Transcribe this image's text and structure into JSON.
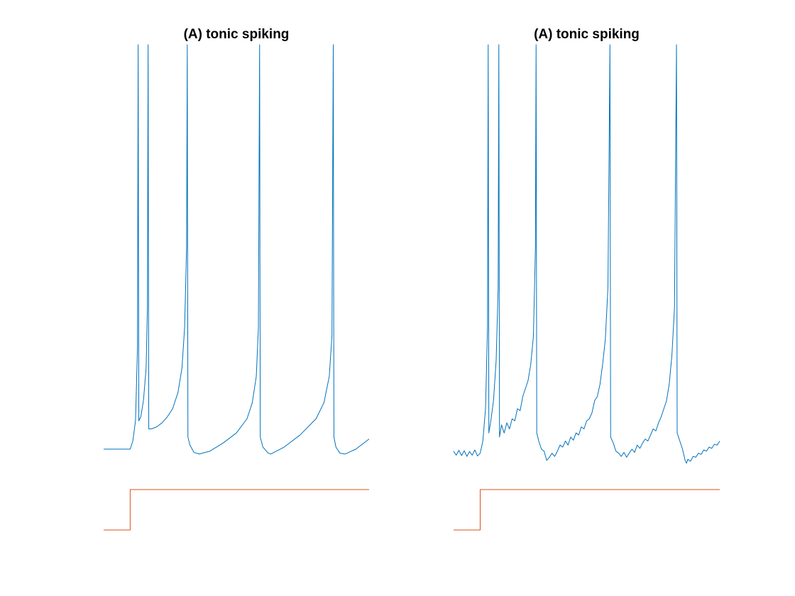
{
  "chart_data": [
    {
      "type": "line",
      "title": "(A) tonic spiking",
      "xlim": [
        0,
        100
      ],
      "ylim": [
        -90,
        30
      ],
      "series": [
        {
          "color": "#0072BD",
          "x": [
            0,
            10,
            11,
            12,
            12.75,
            13,
            13.25,
            14,
            15,
            16,
            16.5,
            16.75,
            17,
            18,
            20,
            22,
            24,
            26,
            28,
            29.5,
            30.5,
            31.25,
            31.5,
            31.75,
            32.5,
            34,
            36,
            40,
            45,
            50,
            54,
            56,
            57.5,
            58.3,
            58.75,
            59,
            60,
            62,
            63,
            68,
            74,
            80,
            83,
            85,
            86,
            86.5,
            86.75,
            87.5,
            89,
            91,
            95,
            100
          ],
          "values": [
            -70,
            -70,
            -68,
            -63,
            -45,
            30,
            -63,
            -62,
            -58,
            -50,
            -35,
            30,
            -65,
            -65,
            -64.5,
            -63.5,
            -62,
            -60,
            -56,
            -50,
            -40,
            -20,
            30,
            -67,
            -69,
            -70.8,
            -71.2,
            -70.5,
            -68.5,
            -66,
            -62.5,
            -58.5,
            -52,
            -40,
            30,
            -67,
            -69.5,
            -71,
            -71.2,
            -69.5,
            -66.5,
            -62.5,
            -58.5,
            -52,
            -42,
            30,
            -67,
            -69.5,
            -71,
            -71.2,
            -70,
            -67.5
          ]
        },
        {
          "color": "#D95319",
          "x": [
            0,
            10,
            10,
            100
          ],
          "values": [
            -90,
            -90,
            -80,
            -80
          ]
        }
      ]
    },
    {
      "type": "line",
      "title": "(A) tonic spiking",
      "xlim": [
        0,
        100
      ],
      "ylim": [
        -90,
        30
      ],
      "series": [
        {
          "color": "#0072BD",
          "x": [
            0,
            1,
            2,
            3,
            4,
            5,
            6,
            7,
            8,
            9,
            10,
            11,
            12,
            12.75,
            13,
            13.25,
            14,
            15,
            16,
            16.75,
            17,
            17.25,
            18,
            19,
            20,
            21,
            22,
            23,
            24,
            25,
            26,
            27,
            28,
            29,
            30,
            30.75,
            31,
            31.25,
            32,
            33,
            34,
            35,
            36,
            37,
            38,
            39,
            40,
            41,
            42,
            43,
            44,
            45,
            46,
            47,
            48,
            49,
            50,
            51,
            52,
            53,
            54,
            55,
            56,
            57,
            58,
            58.75,
            59,
            60,
            61,
            62,
            63,
            64,
            65,
            66,
            67,
            68,
            69,
            70,
            71,
            72,
            73,
            74,
            75,
            76,
            77,
            78,
            79,
            80,
            81,
            82,
            83,
            83.75,
            84,
            85,
            86,
            87,
            87.5,
            88,
            89,
            90,
            91,
            92,
            93,
            94,
            95,
            96,
            97,
            98,
            99,
            100
          ],
          "values": [
            -70.5,
            -71.5,
            -70.3,
            -71.6,
            -70.4,
            -71.8,
            -70.6,
            -71.5,
            -70.2,
            -71.7,
            -71,
            -68,
            -60,
            -40,
            30,
            -66,
            -63,
            -58,
            -48,
            -30,
            30,
            -67,
            -64,
            -66,
            -63.5,
            -65,
            -62.5,
            -63,
            -60,
            -60.5,
            -57,
            -55,
            -53,
            -49,
            -42,
            -20,
            30,
            -66,
            -68,
            -70,
            -70.5,
            -72.8,
            -72,
            -71,
            -71.8,
            -70.5,
            -69,
            -69.5,
            -68,
            -69,
            -67,
            -67.8,
            -66,
            -66.5,
            -64.5,
            -65,
            -63,
            -62.5,
            -61,
            -58,
            -57,
            -54,
            -49,
            -43,
            -30,
            30,
            -67,
            -68.5,
            -70.5,
            -71,
            -71.8,
            -70.8,
            -72,
            -71,
            -70,
            -70.8,
            -69,
            -69.8,
            -68.5,
            -67.5,
            -68,
            -66.5,
            -65,
            -65.5,
            -63.5,
            -62,
            -60,
            -58,
            -54,
            -47,
            -35,
            30,
            -66,
            -68,
            -70,
            -72.8,
            -73.5,
            -72.5,
            -73,
            -71.8,
            -72,
            -71,
            -71.3,
            -70.2,
            -70.5,
            -69.5,
            -69.8,
            -68.8,
            -69,
            -68
          ]
        },
        {
          "color": "#D95319",
          "x": [
            0,
            10,
            10,
            100
          ],
          "values": [
            -90,
            -90,
            -80,
            -80
          ]
        }
      ]
    }
  ]
}
